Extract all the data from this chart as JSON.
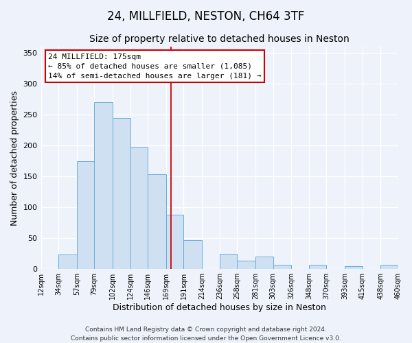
{
  "title": "24, MILLFIELD, NESTON, CH64 3TF",
  "subtitle": "Size of property relative to detached houses in Neston",
  "xlabel": "Distribution of detached houses by size in Neston",
  "ylabel": "Number of detached properties",
  "bar_left_edges": [
    12,
    34,
    57,
    79,
    102,
    124,
    146,
    169,
    191,
    214,
    236,
    258,
    281,
    303,
    326,
    348,
    370,
    393,
    415,
    438
  ],
  "bar_right_edges": [
    34,
    57,
    79,
    102,
    124,
    146,
    169,
    191,
    214,
    236,
    258,
    281,
    303,
    326,
    348,
    370,
    393,
    415,
    438,
    460
  ],
  "bar_heights": [
    0,
    24,
    175,
    270,
    245,
    198,
    153,
    88,
    47,
    0,
    25,
    14,
    20,
    7,
    0,
    7,
    0,
    5,
    0,
    7
  ],
  "bar_color": "#cfe0f3",
  "bar_edge_color": "#6aaed6",
  "ylim": [
    0,
    360
  ],
  "xlim": [
    12,
    460
  ],
  "property_size": 175,
  "annotation_title": "24 MILLFIELD: 175sqm",
  "annotation_line1": "← 85% of detached houses are smaller (1,085)",
  "annotation_line2": "14% of semi-detached houses are larger (181) →",
  "annotation_box_color": "#ffffff",
  "annotation_box_edge_color": "#cc0000",
  "red_line_color": "#cc0000",
  "footer_line1": "Contains HM Land Registry data © Crown copyright and database right 2024.",
  "footer_line2": "Contains public sector information licensed under the Open Government Licence v3.0.",
  "tick_labels": [
    "12sqm",
    "34sqm",
    "57sqm",
    "79sqm",
    "102sqm",
    "124sqm",
    "146sqm",
    "169sqm",
    "191sqm",
    "214sqm",
    "236sqm",
    "258sqm",
    "281sqm",
    "303sqm",
    "326sqm",
    "348sqm",
    "370sqm",
    "393sqm",
    "415sqm",
    "438sqm",
    "460sqm"
  ],
  "tick_positions": [
    12,
    34,
    57,
    79,
    102,
    124,
    146,
    169,
    191,
    214,
    236,
    258,
    281,
    303,
    326,
    348,
    370,
    393,
    415,
    438,
    460
  ],
  "yticks": [
    0,
    50,
    100,
    150,
    200,
    250,
    300,
    350
  ],
  "background_color": "#eef3fb",
  "grid_color": "#ffffff",
  "title_fontsize": 12,
  "subtitle_fontsize": 10,
  "axis_label_fontsize": 9,
  "tick_fontsize": 7,
  "annotation_fontsize": 8,
  "footer_fontsize": 6.5
}
